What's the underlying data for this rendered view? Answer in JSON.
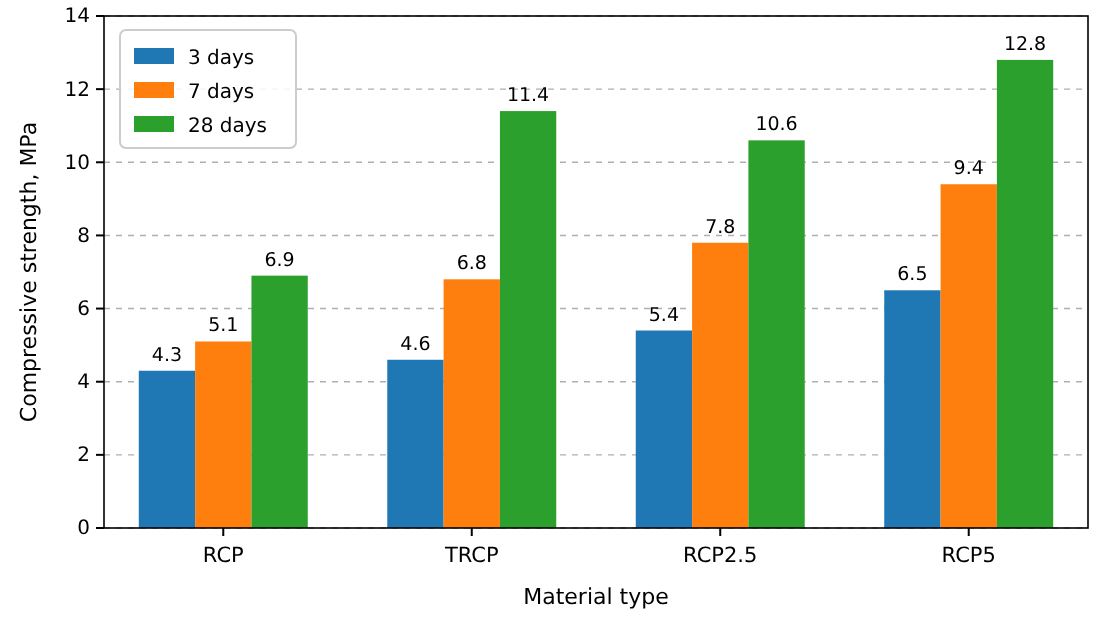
{
  "chart_data": {
    "type": "bar",
    "xlabel": "Material type",
    "ylabel": "Compressive strength, MPa",
    "categories": [
      "RCP",
      "TRCP",
      "RCP2.5",
      "RCP5"
    ],
    "series": [
      {
        "name": "3 days",
        "color": "#1f77b4",
        "values": [
          4.3,
          4.6,
          5.4,
          6.5
        ]
      },
      {
        "name": "7 days",
        "color": "#ff7f0e",
        "values": [
          5.1,
          6.8,
          7.8,
          9.4
        ]
      },
      {
        "name": "28 days",
        "color": "#2ca02c",
        "values": [
          6.9,
          11.4,
          10.6,
          12.8
        ]
      }
    ],
    "ylim": [
      0,
      14
    ],
    "yticks": [
      0,
      2,
      4,
      6,
      8,
      10,
      12,
      14
    ],
    "grid": "y",
    "legend": "top left",
    "data_labels": true
  }
}
